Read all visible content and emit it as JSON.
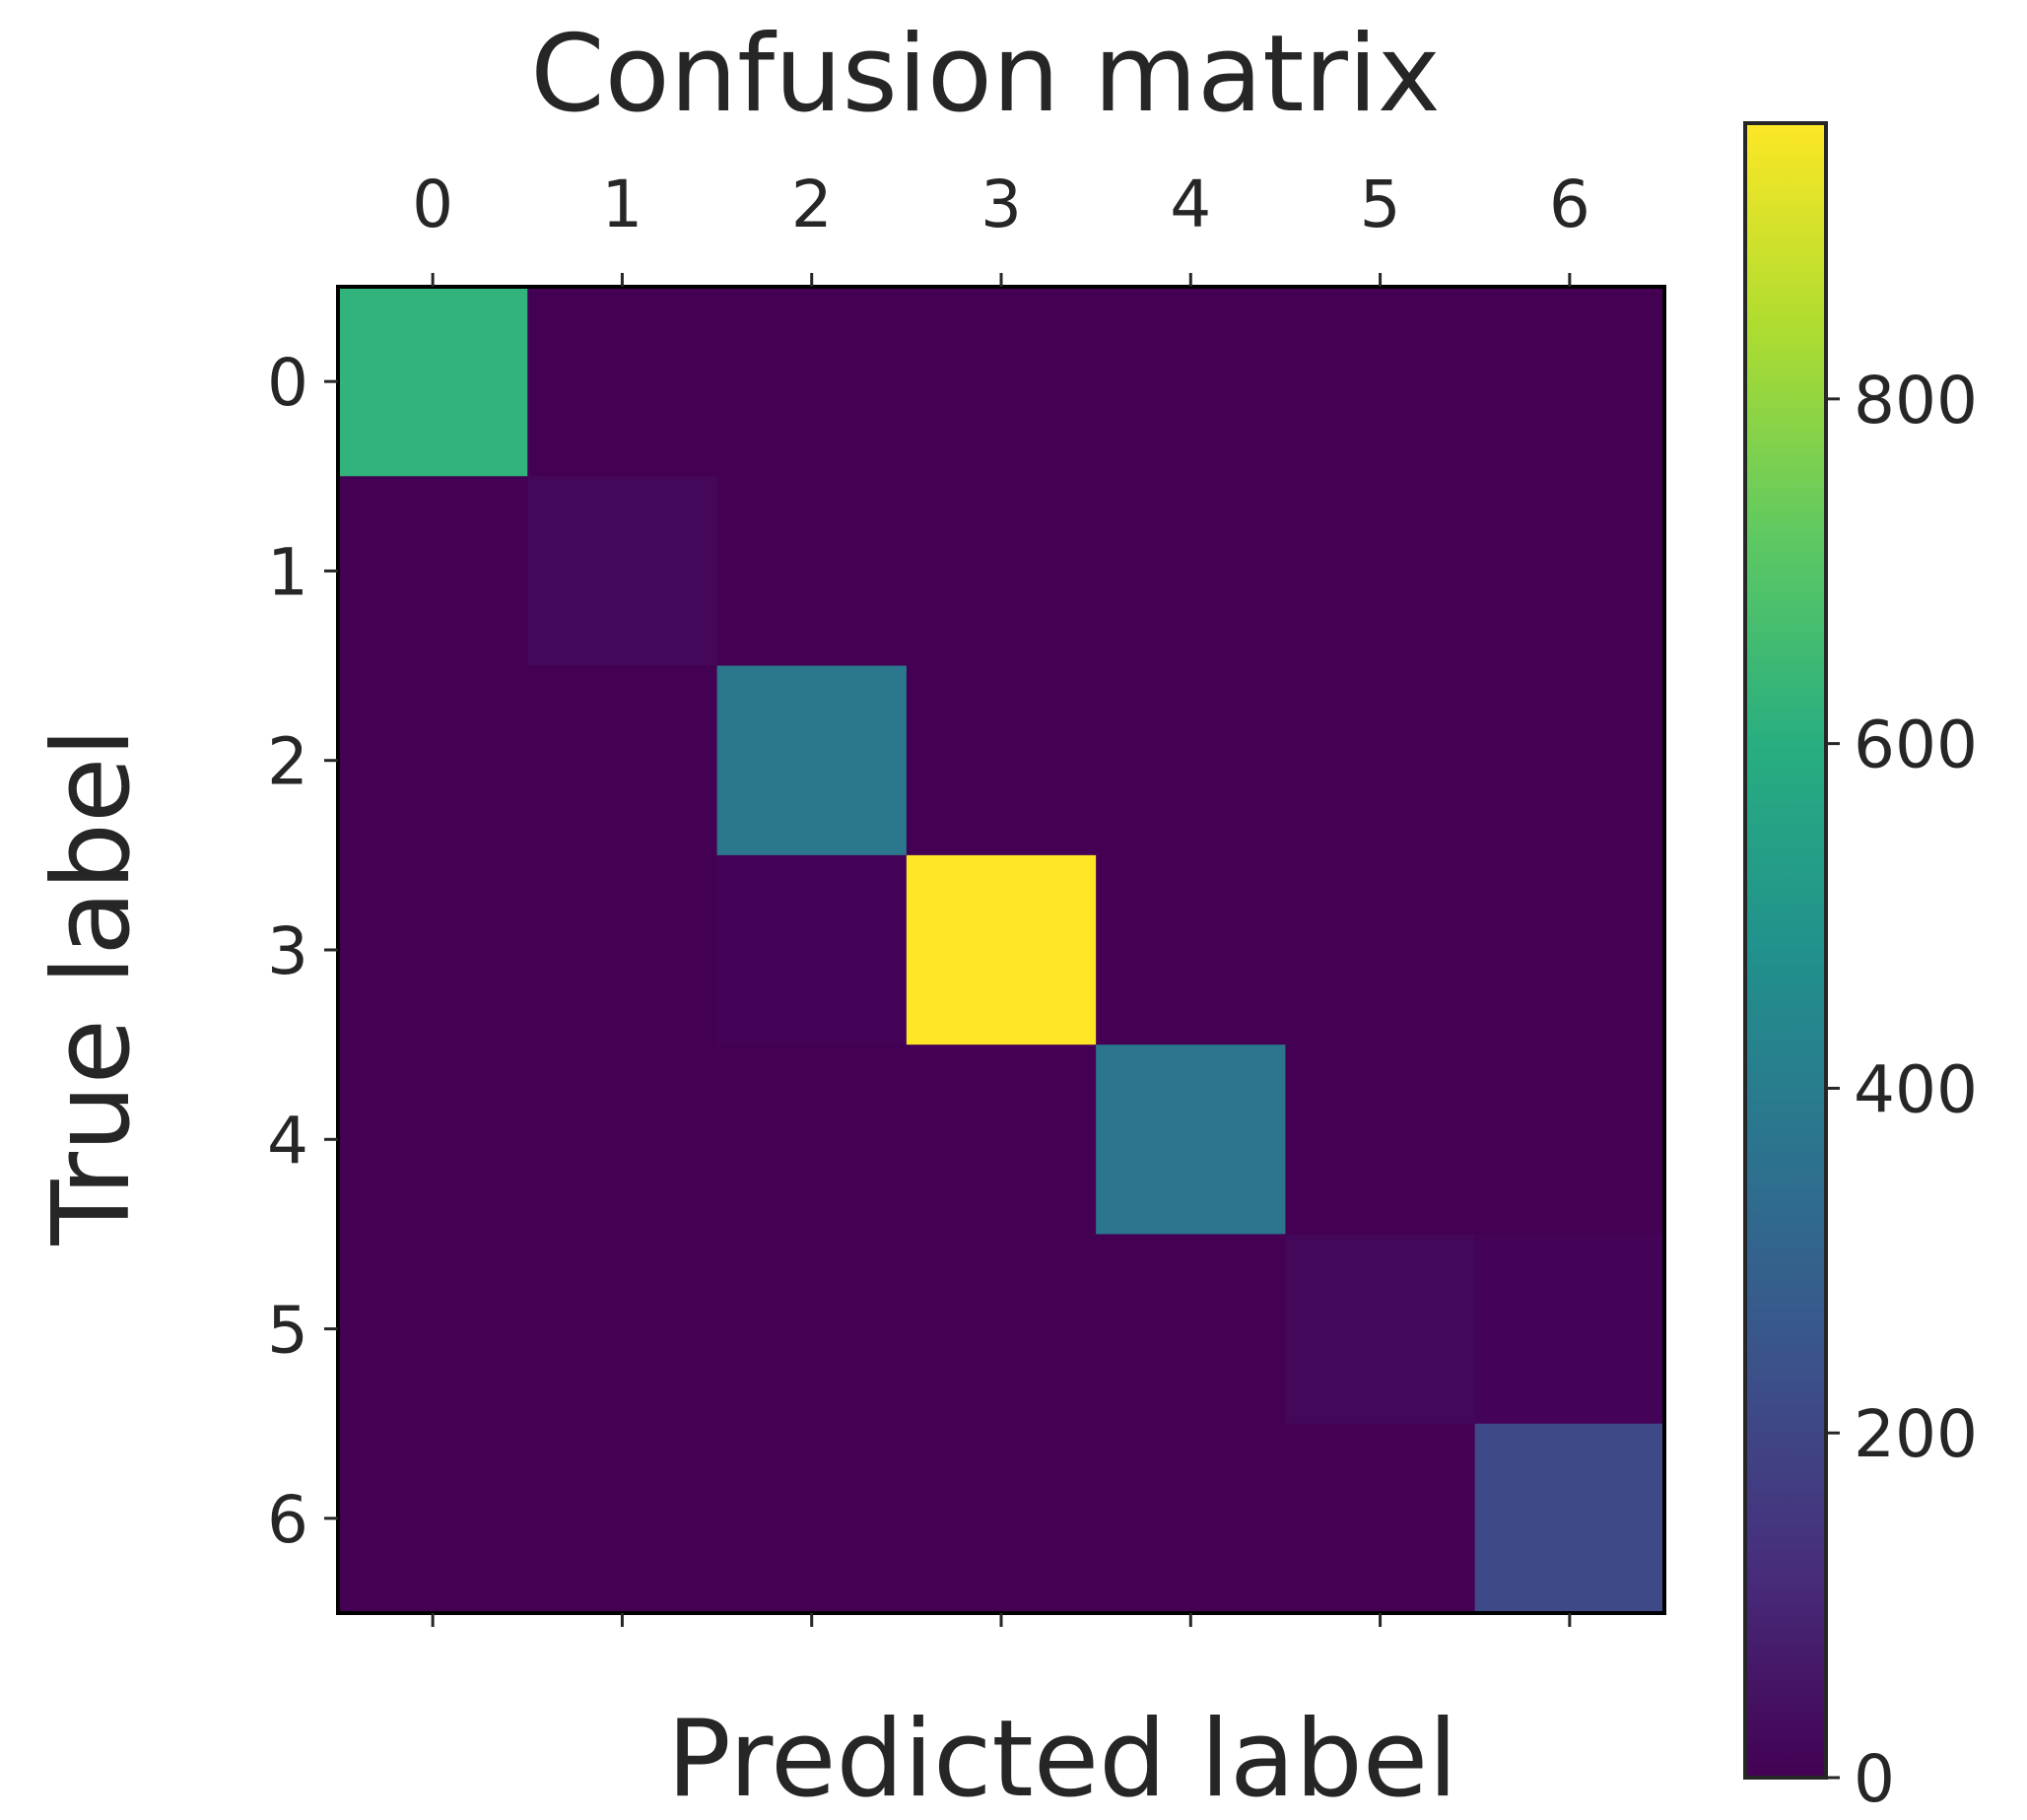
{
  "chart_data": {
    "type": "heatmap",
    "title": "Confusion matrix",
    "xlabel": "Predicted label",
    "ylabel": "True label",
    "x_categories": [
      "0",
      "1",
      "2",
      "3",
      "4",
      "5",
      "6"
    ],
    "y_categories": [
      "0",
      "1",
      "2",
      "3",
      "4",
      "5",
      "6"
    ],
    "values": [
      [
        620,
        0,
        0,
        0,
        0,
        0,
        0
      ],
      [
        0,
        15,
        0,
        0,
        0,
        0,
        0
      ],
      [
        0,
        0,
        380,
        0,
        0,
        0,
        0
      ],
      [
        0,
        0,
        5,
        960,
        0,
        0,
        0
      ],
      [
        0,
        0,
        0,
        0,
        370,
        0,
        0
      ],
      [
        0,
        0,
        0,
        0,
        0,
        18,
        5
      ],
      [
        0,
        0,
        0,
        0,
        0,
        0,
        210
      ]
    ],
    "colormap": "viridis",
    "colorbar": {
      "vmin": 0,
      "vmax": 960,
      "ticks": [
        0,
        200,
        400,
        600,
        800
      ],
      "tick_labels": [
        "0",
        "200",
        "400",
        "600",
        "800"
      ]
    }
  }
}
